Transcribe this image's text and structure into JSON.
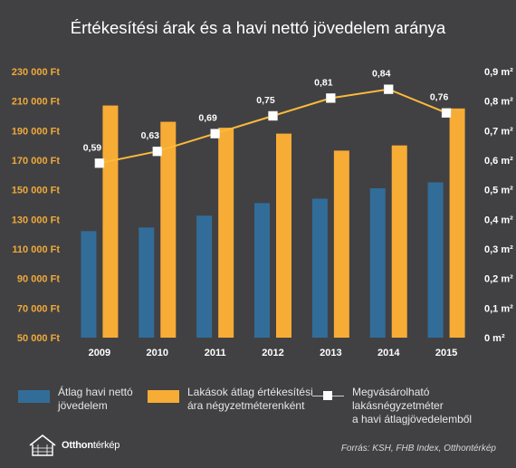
{
  "title": "Értékesítési árak és a havi nettó jövedelem aránya",
  "chart_data": {
    "type": "bar",
    "categories": [
      "2009",
      "2010",
      "2011",
      "2012",
      "2013",
      "2014",
      "2015"
    ],
    "series": [
      {
        "name": "Átlag havi nettó jövedelem",
        "type": "bar",
        "axis": "left",
        "color": "#326d99",
        "values": [
          122000,
          124500,
          132500,
          141000,
          144000,
          151000,
          155000
        ]
      },
      {
        "name": "Lakások átlag értékesítési ára négyzetméterenként",
        "type": "bar",
        "axis": "left",
        "color": "#f7ac35",
        "values": [
          207000,
          196000,
          192000,
          188000,
          176500,
          180000,
          205000
        ]
      },
      {
        "name": "Megvásárolható lakásnégyzetméter a havi átlagjövedelemből",
        "type": "line",
        "axis": "right",
        "color": "#fbba3b",
        "values": [
          0.59,
          0.63,
          0.69,
          0.75,
          0.81,
          0.84,
          0.76
        ],
        "labels": [
          "0,59",
          "0,63",
          "0,69",
          "0,75",
          "0,81",
          "0,84",
          "0,76"
        ]
      }
    ],
    "y_left": {
      "ylim": [
        50000,
        230000
      ],
      "ticks": [
        50000,
        70000,
        90000,
        110000,
        130000,
        150000,
        170000,
        190000,
        210000,
        230000
      ],
      "tick_labels": [
        "50 000 Ft",
        "70 000 Ft",
        "90 000 Ft",
        "110 000 Ft",
        "130 000 Ft",
        "150 000 Ft",
        "170 000 Ft",
        "190 000 Ft",
        "210 000 Ft",
        "230 000 Ft"
      ]
    },
    "y_right": {
      "ylim": [
        0,
        0.9
      ],
      "ticks": [
        0,
        0.1,
        0.2,
        0.3,
        0.4,
        0.5,
        0.6,
        0.7,
        0.8,
        0.9
      ],
      "tick_labels": [
        "0 m²",
        "0,1 m²",
        "0,2 m²",
        "0,3 m²",
        "0,4 m²",
        "0,5 m²",
        "0,6 m²",
        "0,7 m²",
        "0,8 m²",
        "0,9 m²"
      ]
    },
    "grid": false,
    "legend_position": "bottom"
  },
  "legend": {
    "income": "Átlag havi nettó\njövedelem",
    "price": "Lakások átlag értékesítési\nára négyzetméterenként",
    "area": "Megvásárolható lakásnégyzetméter\na havi átlagjövedelemből"
  },
  "logo": {
    "bold": "Otthon",
    "light": "térkép"
  },
  "source": "Forrás: KSH, FHB Index, Otthontérkép",
  "colors": {
    "background": "#414143",
    "income_bar": "#326d99",
    "price_bar": "#f7ac35",
    "line": "#fbba3b",
    "left_axis_text": "#f0a93a",
    "right_axis_text": "#ffffff"
  }
}
